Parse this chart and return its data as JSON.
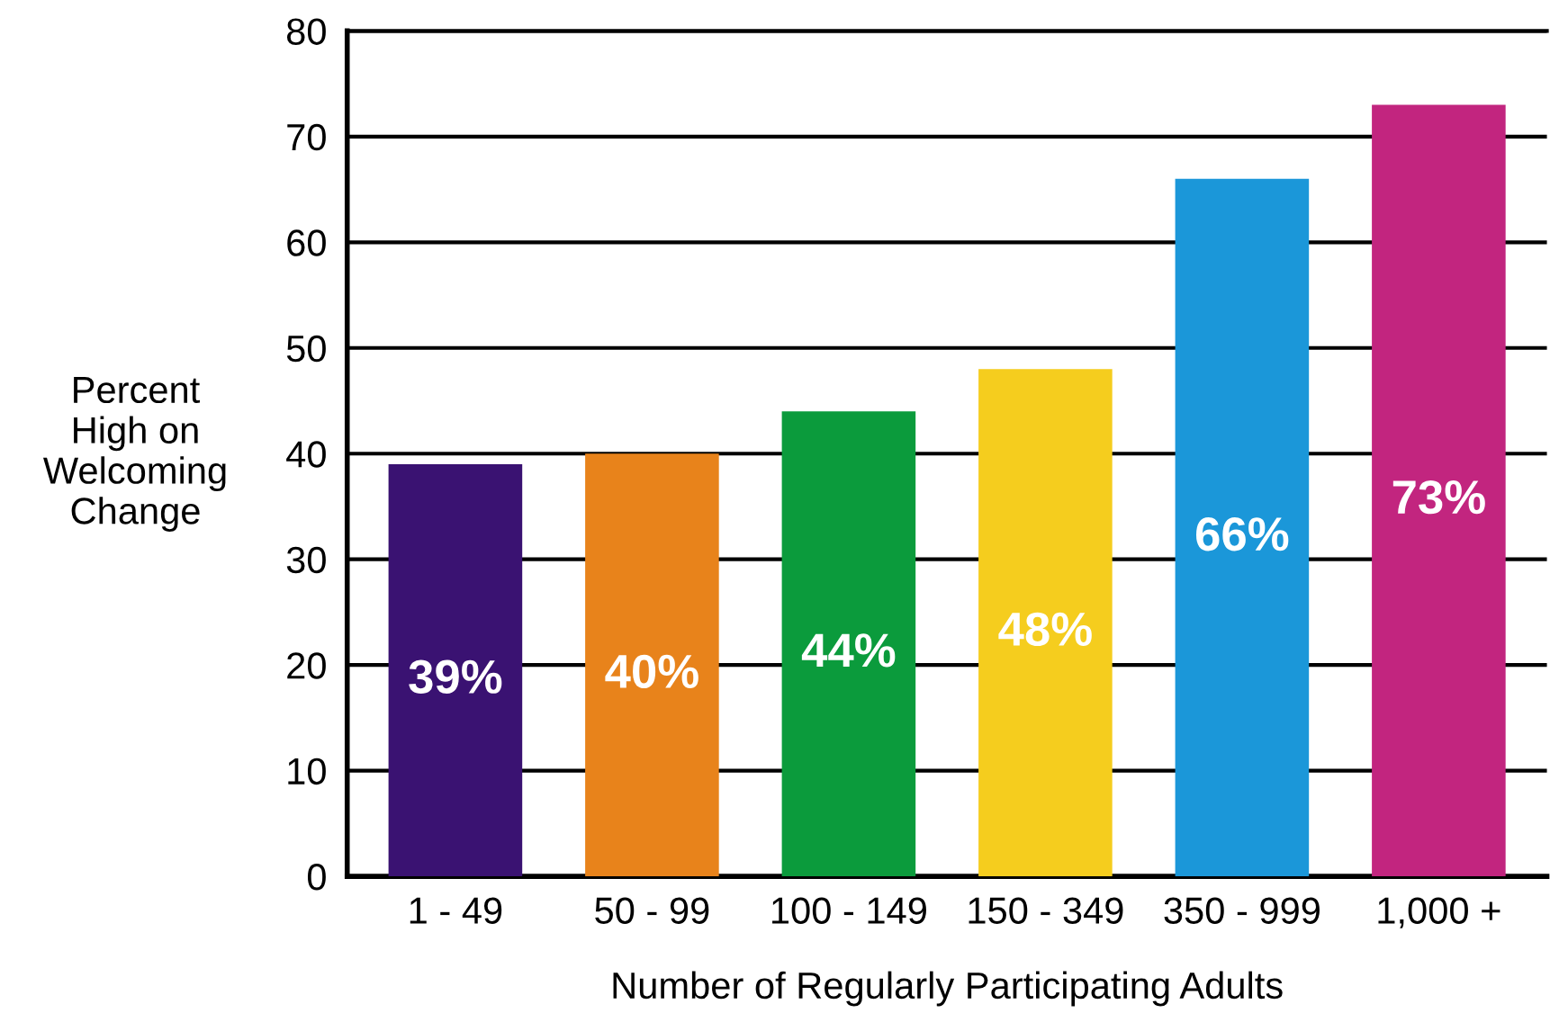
{
  "chart_data": {
    "type": "bar",
    "categories": [
      "1 - 49",
      "50 - 99",
      "100 - 149",
      "150 - 349",
      "350 - 999",
      "1,000 +"
    ],
    "values": [
      39,
      40,
      44,
      48,
      66,
      73
    ],
    "colors": [
      "#3a1272",
      "#e8831b",
      "#0b9b3c",
      "#f5cd1e",
      "#1b97d9",
      "#c2257f"
    ],
    "value_labels": [
      "39%",
      "40%",
      "44%",
      "48%",
      "66%",
      "73%"
    ],
    "ylim": [
      0,
      80
    ],
    "yticks": [
      0,
      10,
      20,
      30,
      40,
      50,
      60,
      70,
      80
    ],
    "ylabel": "Percent\nHigh on\nWelcoming\nChange",
    "xlabel": "Number of Regularly Participating Adults",
    "grid": "y"
  }
}
